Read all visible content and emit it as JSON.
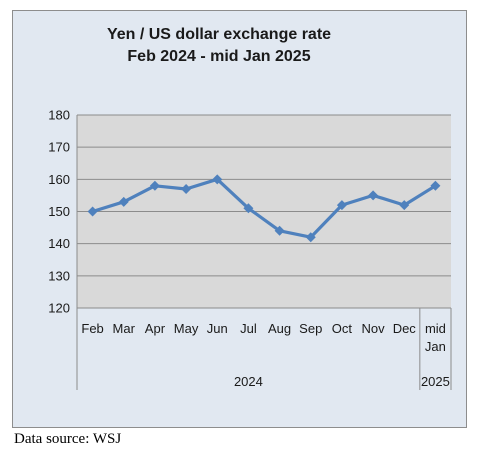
{
  "chart_data": {
    "type": "line",
    "title_lines": [
      "Yen / US dollar exchange rate",
      "Feb 2024 - mid Jan 2025"
    ],
    "categories": [
      "Feb",
      "Mar",
      "Apr",
      "May",
      "Jun",
      "Jul",
      "Aug",
      "Sep",
      "Oct",
      "Nov",
      "Dec",
      "mid Jan"
    ],
    "category_label_lines": [
      [
        "Feb"
      ],
      [
        "Mar"
      ],
      [
        "Apr"
      ],
      [
        "May"
      ],
      [
        "Jun"
      ],
      [
        "Jul"
      ],
      [
        "Aug"
      ],
      [
        "Sep"
      ],
      [
        "Oct"
      ],
      [
        "Nov"
      ],
      [
        "Dec"
      ],
      [
        "mid",
        "Jan"
      ]
    ],
    "year_groups": [
      {
        "label": "2024",
        "span": 11
      },
      {
        "label": "2025",
        "span": 1
      }
    ],
    "values": [
      150,
      153,
      158,
      157,
      160,
      151,
      144,
      142,
      152,
      155,
      152,
      158
    ],
    "ylim": [
      120,
      180
    ],
    "yticks": [
      120,
      130,
      140,
      150,
      160,
      170,
      180
    ],
    "grid": true,
    "legend": "none",
    "colors": {
      "line": "#4f81bd",
      "plot_background": "#d9d9d9",
      "panel_background": "#e1e8f1",
      "gridline": "#8c8c8c"
    }
  },
  "footer": {
    "source": "Data source: WSJ"
  }
}
